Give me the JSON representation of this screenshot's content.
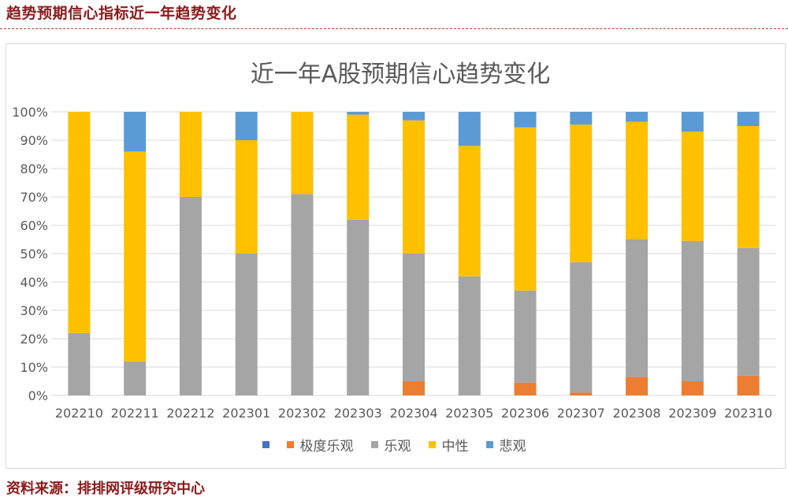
{
  "header": {
    "title": "趋势预期信心指标近一年趋势变化"
  },
  "footer": {
    "source": "资料来源：排排网评级研究中心"
  },
  "chart_data": {
    "type": "bar",
    "stacked": true,
    "title": "近一年A股预期信心趋势变化",
    "ylim": [
      0,
      100
    ],
    "yticks": [
      "0%",
      "10%",
      "20%",
      "30%",
      "40%",
      "50%",
      "60%",
      "70%",
      "80%",
      "90%",
      "100%"
    ],
    "grid": true,
    "legend_position": "bottom",
    "categories": [
      "202210",
      "202211",
      "202212",
      "202301",
      "202302",
      "202303",
      "202304",
      "202305",
      "202306",
      "202307",
      "202308",
      "202309",
      "202310"
    ],
    "series": [
      {
        "name": "",
        "color": "#4472c4",
        "values": [
          0,
          0,
          0,
          0,
          0,
          0,
          0,
          0,
          0,
          0,
          0,
          0,
          0
        ]
      },
      {
        "name": "极度乐观",
        "color": "#ed7d31",
        "values": [
          0,
          0,
          0,
          0,
          0,
          0,
          5,
          0,
          4.5,
          1,
          6.5,
          5,
          7
        ]
      },
      {
        "name": "乐观",
        "color": "#a5a5a5",
        "values": [
          22,
          12,
          70,
          50,
          71,
          62,
          45,
          42,
          32.5,
          46,
          48.5,
          49.5,
          45
        ]
      },
      {
        "name": "中性",
        "color": "#ffc000",
        "values": [
          78,
          74,
          30,
          40,
          29,
          37,
          47,
          46,
          57.5,
          48.5,
          41.5,
          38.5,
          43
        ]
      },
      {
        "name": "悲观",
        "color": "#5b9bd5",
        "values": [
          0,
          14,
          0,
          10,
          0,
          1,
          3,
          12,
          5.5,
          4.5,
          3.5,
          7,
          5
        ]
      }
    ]
  }
}
